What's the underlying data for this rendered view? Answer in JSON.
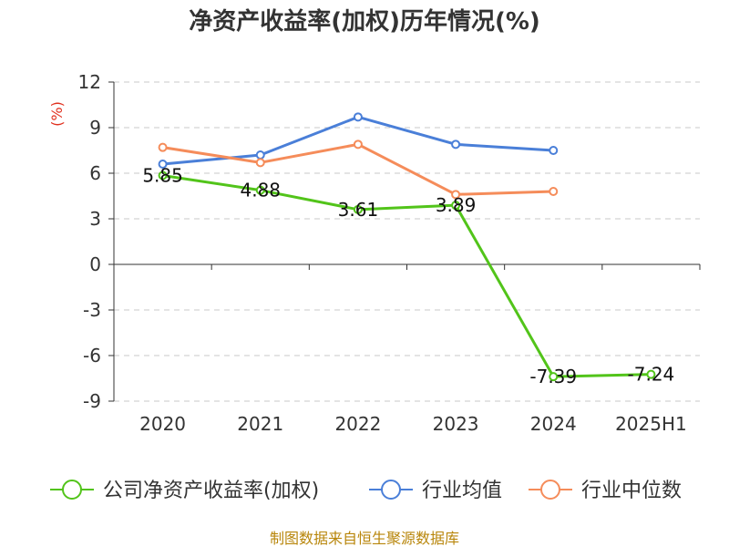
{
  "title": "净资产收益率(加权)历年情况(%)",
  "source": "制图数据来自恒生聚源数据库",
  "chart_data": {
    "type": "line",
    "title": "净资产收益率(加权)历年情况(%)",
    "unit_label": "(%)",
    "categories": [
      "2020",
      "2021",
      "2022",
      "2023",
      "2024",
      "2025H1"
    ],
    "y_ticks": [
      "12",
      "9",
      "6",
      "3",
      "0",
      "-3",
      "-6",
      "-9"
    ],
    "ylim": [
      -9,
      12
    ],
    "grid": true,
    "legend_position": "bottom",
    "series": [
      {
        "name": "公司净资产收益率(加权)",
        "color": "#52c41a",
        "values": [
          5.85,
          4.88,
          3.61,
          3.89,
          -7.39,
          -7.24
        ],
        "labels": [
          "5.85",
          "4.88",
          "3.61",
          "3.89",
          "-7.39",
          "-7.24"
        ]
      },
      {
        "name": "行业均值",
        "color": "#4a7fd8",
        "values": [
          6.6,
          7.2,
          9.7,
          7.9,
          7.5,
          null
        ]
      },
      {
        "name": "行业中位数",
        "color": "#f58c5a",
        "values": [
          7.7,
          6.7,
          7.9,
          4.6,
          4.8,
          null
        ]
      }
    ]
  }
}
